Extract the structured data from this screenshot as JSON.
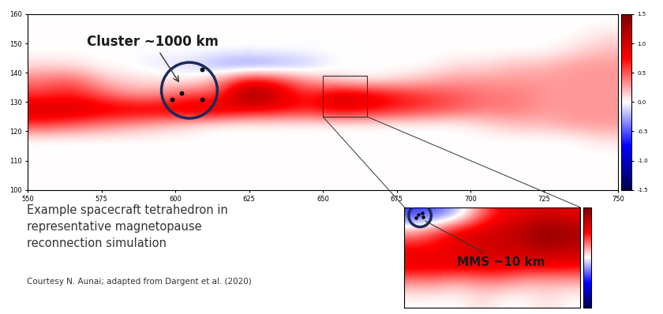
{
  "chart_data": [
    {
      "type": "heatmap",
      "xlim": [
        550,
        750
      ],
      "ylim": [
        100,
        160
      ],
      "xticks": [
        550,
        575,
        600,
        625,
        650,
        675,
        700,
        725,
        750
      ],
      "yticks": [
        100,
        110,
        120,
        130,
        140,
        150,
        160
      ],
      "cells": [
        [
          0,
          0,
          0,
          0,
          0,
          0,
          0,
          0,
          0,
          0,
          0,
          0,
          0,
          0,
          0,
          0,
          0,
          0,
          0,
          0
        ],
        [
          0,
          0,
          0,
          0,
          0,
          0,
          0,
          0,
          0,
          0,
          0,
          0,
          0,
          0,
          0,
          0,
          0,
          0,
          0,
          0
        ],
        [
          0,
          0,
          0,
          0,
          0,
          0,
          0,
          0,
          0,
          0,
          0,
          0,
          0,
          0,
          0,
          0,
          0,
          0,
          0,
          0
        ],
        [
          0,
          0,
          0,
          0,
          0,
          0,
          0,
          0,
          0,
          0,
          0,
          0,
          0,
          0,
          0,
          0,
          0,
          0,
          0,
          0.1
        ],
        [
          0.6,
          0.5,
          0.4,
          0.3,
          0.2,
          0.1,
          0,
          0,
          0,
          0,
          0,
          0,
          0,
          0,
          0,
          0.1,
          0.2,
          0.2,
          0.3,
          0.3
        ],
        [
          1.0,
          1.0,
          0.9,
          0.9,
          0.9,
          1.0,
          1.0,
          0.8,
          0.8,
          0.7,
          0.9,
          0.8,
          0.7,
          0.6,
          0.5,
          0.4,
          0.4,
          0.3,
          0.3,
          0.3
        ],
        [
          0.6,
          0.7,
          0.5,
          0.3,
          0.3,
          0.6,
          0.5,
          1.5,
          1.0,
          0.6,
          1.0,
          0.9,
          0.7,
          0.6,
          0.5,
          0.4,
          0.4,
          0.3,
          0.3,
          0.3
        ],
        [
          0.4,
          0.5,
          0.2,
          0.1,
          0.1,
          0.0,
          0.3,
          0.8,
          0.6,
          0.3,
          0.1,
          0.0,
          0.1,
          0.2,
          0.3,
          0.3,
          0.3,
          0.3,
          0.3,
          0.3
        ],
        [
          0.1,
          0.1,
          0,
          0,
          -0.1,
          -0.1,
          -0.3,
          -0.4,
          -0.3,
          -0.2,
          0,
          0,
          0,
          0,
          0.1,
          0.1,
          0.2,
          0.2,
          0.3,
          0.3
        ],
        [
          0,
          0,
          0,
          0,
          0,
          0,
          0,
          0,
          0,
          0,
          0,
          0,
          0,
          0,
          0,
          0,
          0,
          0,
          0.1,
          0.2
        ],
        [
          0,
          0,
          0,
          0,
          0,
          0,
          0,
          0,
          0,
          0,
          0,
          0,
          0,
          0,
          0,
          0,
          0,
          0,
          0,
          0.1
        ],
        [
          0,
          0,
          0,
          0,
          0,
          0,
          0,
          0,
          0,
          0,
          0,
          0,
          0,
          0,
          0,
          0,
          0,
          0,
          0,
          0
        ]
      ],
      "colorbar_range": [
        -1.5,
        1.5
      ],
      "colorbar_ticks": [
        {
          "value": -1.5,
          "label": "-1.5"
        },
        {
          "value": -1.0,
          "label": "-1.0"
        },
        {
          "value": -0.5,
          "label": "-0.5"
        },
        {
          "value": 0.0,
          "label": "0.0"
        },
        {
          "value": 0.5,
          "label": "0.5"
        },
        {
          "value": 1.0,
          "label": "1.0"
        },
        {
          "value": 1.5,
          "label": "1.5"
        }
      ],
      "spacecraft": [
        [
          609,
          141
        ],
        [
          602,
          133
        ],
        [
          599,
          131
        ],
        [
          609,
          131
        ]
      ],
      "annotations": [
        "Cluster ~1000 km"
      ]
    },
    {
      "type": "heatmap",
      "xlim": [
        650,
        665
      ],
      "ylim": [
        125,
        139
      ],
      "tick_labels": false,
      "cells": [
        [
          0,
          0,
          0,
          0.1,
          0,
          0,
          0.1,
          0
        ],
        [
          0.3,
          0.3,
          0.2,
          0.3,
          0.3,
          0.2,
          0.2,
          0.2
        ],
        [
          0.9,
          0.9,
          0.9,
          0.9,
          0.9,
          0.8,
          0.8,
          0.8
        ],
        [
          0.8,
          0.8,
          0.9,
          1.0,
          1.0,
          1.1,
          1.2,
          1.1
        ],
        [
          0.3,
          0.6,
          0.9,
          1.0,
          1.1,
          1.2,
          1.5,
          1.3
        ],
        [
          -0.6,
          -0.5,
          -0.2,
          0.4,
          0.8,
          0.9,
          1.0,
          0.9
        ]
      ],
      "colorbar_range": [
        -1.5,
        1.5
      ],
      "spacecraft": [
        [
          651.2,
          138.0
        ],
        [
          651.6,
          137.6
        ],
        [
          651.0,
          137.5
        ],
        [
          651.5,
          138.2
        ]
      ],
      "annotations": [
        "MMS ~10 km"
      ]
    }
  ],
  "caption": {
    "lines": [
      "Example spacecraft tetrahedron in",
      "representative magnetopause",
      "reconnection simulation"
    ],
    "credit": "Courtesy N. Aunai; adapted from Dargent et al. (2020)"
  }
}
